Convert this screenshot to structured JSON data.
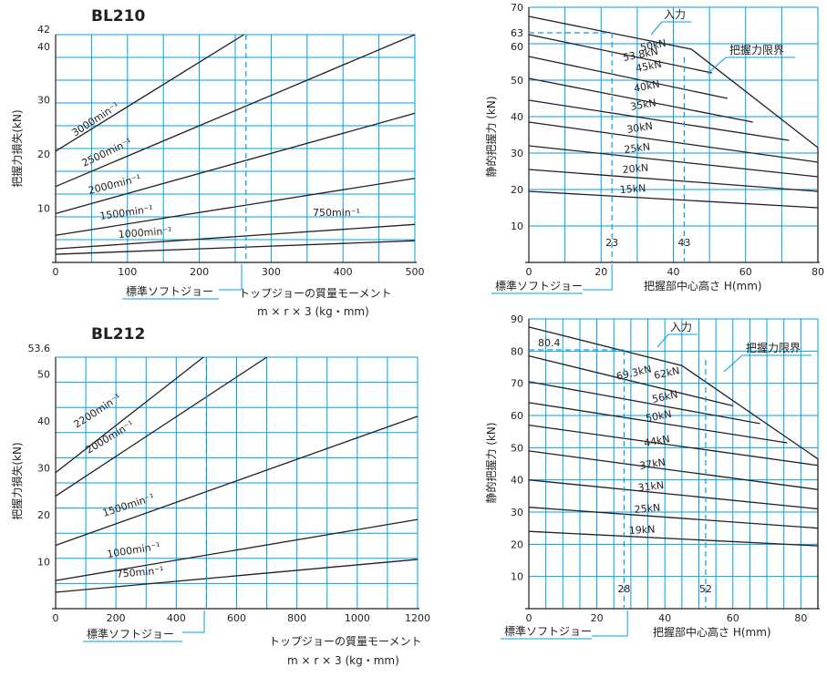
{
  "colors": {
    "grid": "#00a0e9",
    "curve": "#231f20",
    "background": "#ffffff"
  },
  "chart_data": [
    {
      "type": "line",
      "title": "BL210",
      "xlabel": "トップジョーの質量モーメント",
      "xlabel2": "m × r × 3 (kg・mm)",
      "ylabel": "把握力損失(kN)",
      "xlim": [
        0,
        500
      ],
      "ylim": [
        0,
        42
      ],
      "xticks": [
        0,
        100,
        200,
        300,
        400,
        500
      ],
      "yticks": [
        10,
        20,
        30,
        40,
        42
      ],
      "grid": true,
      "series": [
        {
          "name": "3000min⁻¹",
          "x": [
            0,
            262
          ],
          "y": [
            20.5,
            42
          ]
        },
        {
          "name": "2500min⁻¹",
          "x": [
            0,
            500
          ],
          "y": [
            14,
            42
          ]
        },
        {
          "name": "2000min⁻¹",
          "x": [
            0,
            500
          ],
          "y": [
            9,
            27.5
          ]
        },
        {
          "name": "1500min⁻¹",
          "x": [
            0,
            500
          ],
          "y": [
            5,
            15.5
          ]
        },
        {
          "name": "1000min⁻¹",
          "x": [
            0,
            500
          ],
          "y": [
            2.5,
            7
          ]
        },
        {
          "name": "750min⁻¹",
          "x": [
            0,
            500
          ],
          "y": [
            1.5,
            4
          ]
        }
      ],
      "annotations": {
        "marker_x": 265,
        "marker_label": "標準ソフトジョー"
      }
    },
    {
      "type": "line",
      "xlabel": "把握部中心高さ H(mm)",
      "ylabel": "静的把握力 (kN)",
      "xlim": [
        0,
        80
      ],
      "ylim": [
        0,
        70
      ],
      "xticks": [
        0,
        20,
        40,
        60,
        80
      ],
      "yticks": [
        10,
        20,
        30,
        40,
        50,
        60,
        63,
        70
      ],
      "grid": true,
      "limit_label": "把握力限界",
      "input_label": "入力",
      "series": [
        {
          "name": "53.8kN",
          "x": [
            0,
            45,
            80
          ],
          "y": [
            67.5,
            58.5,
            31.5
          ]
        },
        {
          "name": "50kN",
          "x": [
            0,
            50.7
          ],
          "y": [
            62.5,
            52
          ]
        },
        {
          "name": "45kN",
          "x": [
            0,
            55
          ],
          "y": [
            56.5,
            45
          ]
        },
        {
          "name": "40kN",
          "x": [
            0,
            62
          ],
          "y": [
            50.5,
            38.5
          ]
        },
        {
          "name": "35kN",
          "x": [
            0,
            72
          ],
          "y": [
            44.5,
            33.5
          ]
        },
        {
          "name": "30kN",
          "x": [
            0,
            80
          ],
          "y": [
            38.5,
            27.5
          ]
        },
        {
          "name": "25kN",
          "x": [
            0,
            80
          ],
          "y": [
            32,
            23.5
          ]
        },
        {
          "name": "20kN",
          "x": [
            0,
            80
          ],
          "y": [
            25.5,
            19.5
          ]
        },
        {
          "name": "15kN",
          "x": [
            0,
            80
          ],
          "y": [
            19.5,
            15
          ]
        }
      ],
      "annotations": {
        "h_ref": 63,
        "markers": [
          23,
          43
        ],
        "marker_label": "標準ソフトジョー"
      }
    },
    {
      "type": "line",
      "title": "BL212",
      "xlabel": "トップジョーの質量モーメント",
      "xlabel2": "m × r × 3 (kg・mm)",
      "ylabel": "把握力損失(kN)",
      "xlim": [
        0,
        1200
      ],
      "ylim": [
        0,
        53.6
      ],
      "xticks": [
        0,
        200,
        400,
        600,
        800,
        1000,
        1200
      ],
      "yticks": [
        10,
        20,
        30,
        40,
        50,
        53.6
      ],
      "grid": true,
      "series": [
        {
          "name": "2200min⁻¹",
          "x": [
            0,
            490
          ],
          "y": [
            29,
            53.6
          ]
        },
        {
          "name": "2000min⁻¹",
          "x": [
            0,
            700
          ],
          "y": [
            24,
            53.6
          ]
        },
        {
          "name": "1500min⁻¹",
          "x": [
            0,
            1200
          ],
          "y": [
            13.5,
            41
          ]
        },
        {
          "name": "1000min⁻¹",
          "x": [
            0,
            1200
          ],
          "y": [
            6,
            19
          ]
        },
        {
          "name": "750min⁻¹",
          "x": [
            0,
            1200
          ],
          "y": [
            3.5,
            10.5
          ]
        }
      ],
      "annotations": {
        "marker_x": 500,
        "marker_label": "標準ソフトジョー"
      }
    },
    {
      "type": "line",
      "xlabel": "把握部中心高さ H(mm)",
      "ylabel": "静的把握力 (kN)",
      "xlim": [
        0,
        85
      ],
      "ylim": [
        0,
        90
      ],
      "xticks": [
        0,
        20,
        40,
        60,
        80
      ],
      "yticks": [
        10,
        20,
        30,
        40,
        50,
        60,
        70,
        80,
        90
      ],
      "grid": true,
      "limit_label": "把握力限界",
      "input_label": "入力",
      "series": [
        {
          "name": "69.3kN",
          "x": [
            0,
            45,
            85
          ],
          "y": [
            87.5,
            75.5,
            46.5
          ]
        },
        {
          "name": "62kN",
          "x": [
            0,
            60
          ],
          "y": [
            78.5,
            63
          ]
        },
        {
          "name": "56kN",
          "x": [
            0,
            68
          ],
          "y": [
            70.5,
            57.5
          ]
        },
        {
          "name": "50kN",
          "x": [
            0,
            76
          ],
          "y": [
            64,
            51.5
          ]
        },
        {
          "name": "44kN",
          "x": [
            0,
            85
          ],
          "y": [
            57,
            44.5
          ]
        },
        {
          "name": "37kN",
          "x": [
            0,
            85
          ],
          "y": [
            49,
            37
          ]
        },
        {
          "name": "31kN",
          "x": [
            0,
            85
          ],
          "y": [
            40,
            31
          ]
        },
        {
          "name": "25kN",
          "x": [
            0,
            85
          ],
          "y": [
            31.5,
            25
          ]
        },
        {
          "name": "19kN",
          "x": [
            0,
            85
          ],
          "y": [
            24,
            19.5
          ]
        }
      ],
      "annotations": {
        "h_ref": 80.4,
        "markers": [
          28,
          52
        ],
        "marker_label": "標準ソフトジョー"
      }
    }
  ]
}
